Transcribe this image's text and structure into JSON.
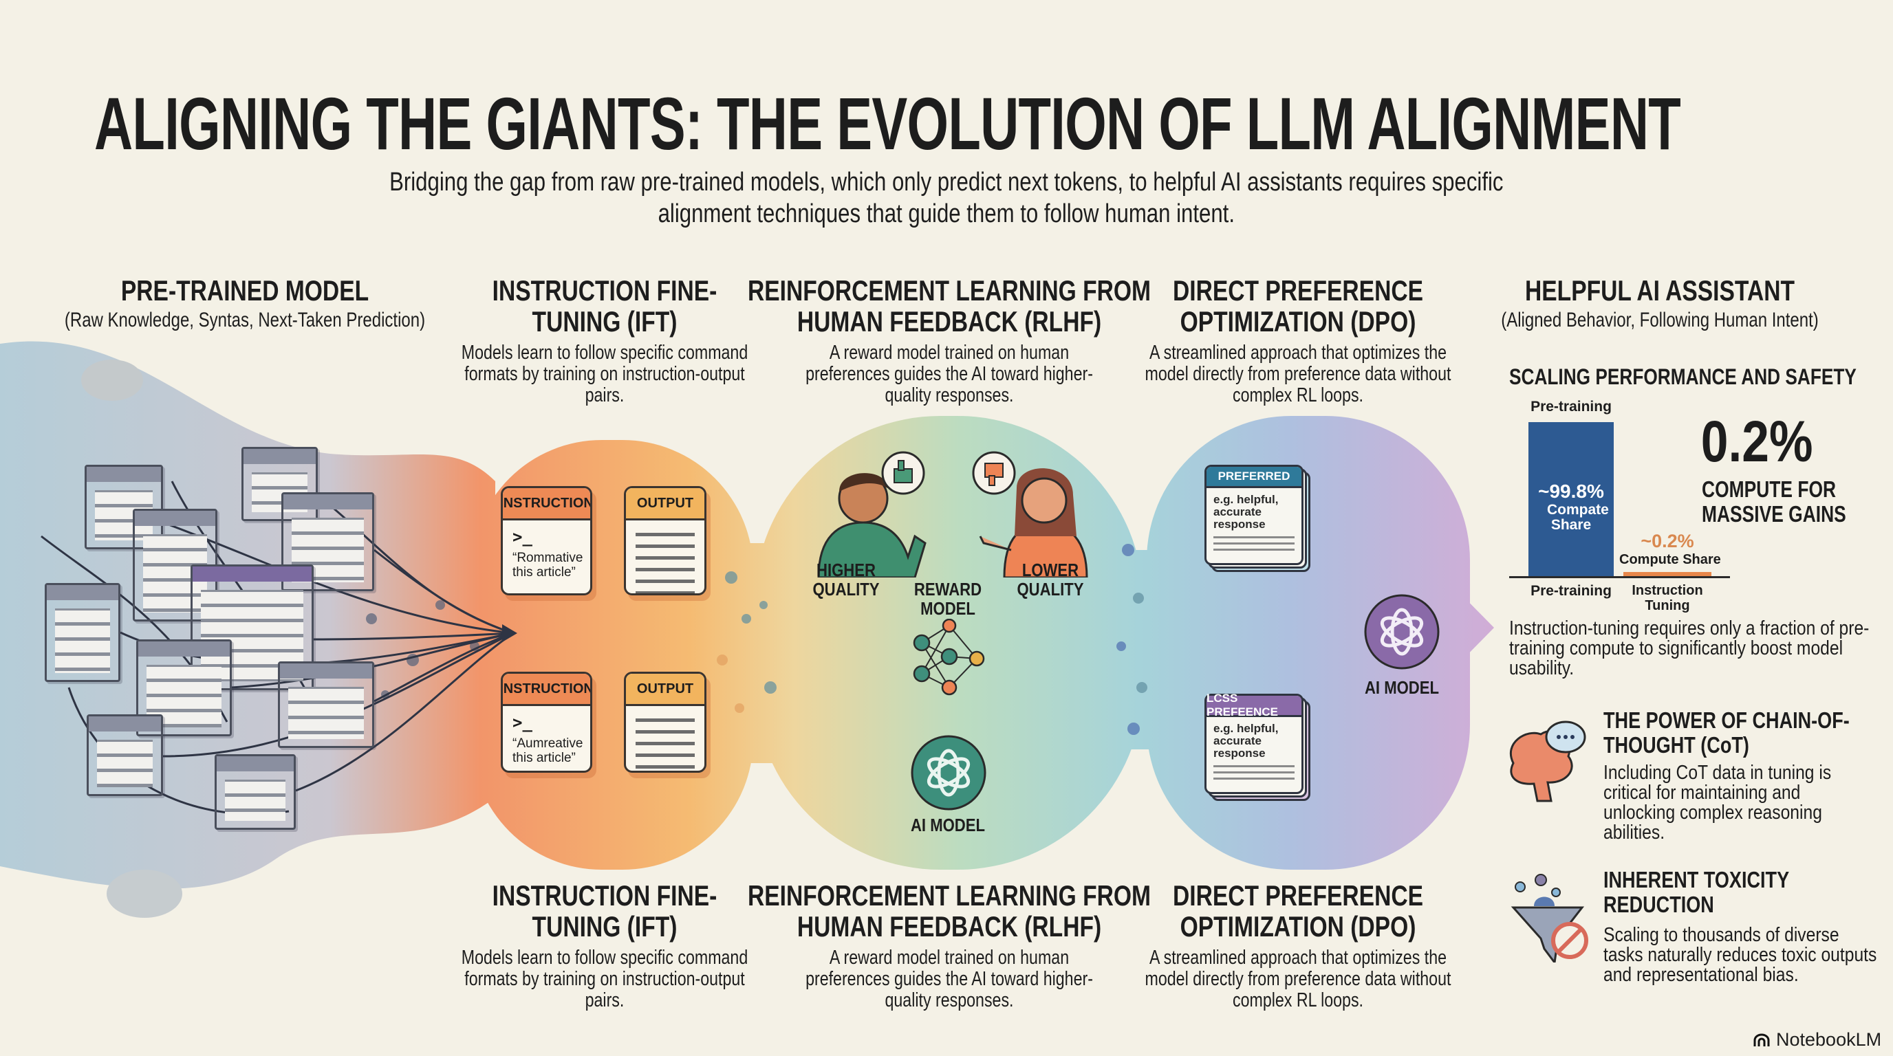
{
  "title": "ALIGNING THE GIANTS: THE EVOLUTION OF LLM ALIGNMENT",
  "subtitle": "Bridging the gap from raw pre-trained models, which only predict next tokens, to helpful AI assistants requires specific alignment techniques that guide them to follow human intent.",
  "stages": [
    {
      "title": "PRE-TRAINED MODEL",
      "subtitle": "(Raw Knowledge, Syntas, Next-Taken Prediction)"
    },
    {
      "title": "INSTRUCTION FINE-TUNING (IFT)",
      "desc": "Models learn to follow specific command formats by training on instruction-output pairs."
    },
    {
      "title": "REINFORCEMENT LEARNING FROM HUMAN FEEDBACK (RLHF)",
      "desc": "A reward model trained on human preferences guides the AI toward higher-quality responses."
    },
    {
      "title": "DIRECT PREFERENCE OPTIMIZATION (DPO)",
      "desc": "A streamlined approach that optimizes the model directly from preference data without complex RL loops."
    },
    {
      "title": "HELPFUL AI ASSISTANT",
      "subtitle": "(Aligned Behavior, Following Human Intent)"
    }
  ],
  "bottom_stages": [
    {
      "title": "INSTRUCTION FINE-TUNING (IFT)",
      "desc": "Models learn to follow specific command formats by training on instruction-output pairs."
    },
    {
      "title": "REINFORCEMENT LEARNING FROM HUMAN FEEDBACK (RLHF)",
      "desc": "A reward model trained on human preferences guides the AI toward higher-quality responses."
    },
    {
      "title": "DIRECT PREFERENCE OPTIMIZATION (DPO)",
      "desc": "A streamlined approach that optimizes the model directly from preference data without complex RL loops."
    }
  ],
  "ift": {
    "pairs": [
      {
        "instruction_label": "INSTRUCTION",
        "prompt": ">_",
        "text": "“Rommative this article”",
        "output_label": "OUTPUT"
      },
      {
        "instruction_label": "INSTRUCTION",
        "prompt": ">_",
        "text": "“Aumreative this article”",
        "output_label": "OUTPUT"
      }
    ]
  },
  "rlhf": {
    "higher": "HIGHER QUALITY",
    "lower": "LOWER QUALITY",
    "reward_model": "REWARD MODEL",
    "ai_model": "AI MODEL"
  },
  "dpo": {
    "preferred": {
      "label": "PREFERRED",
      "text": "e.g. helpful, accurate response"
    },
    "less": {
      "label": "LCSS PREFEENCE",
      "text": "e.g. helpful, accurate response"
    },
    "ai_model": "AI MODEL"
  },
  "right_panel": {
    "scaling_title": "SCALING PERFORMANCE AND SAFETY",
    "bar_top_label": "Pre-training",
    "big_stat": "0.2%",
    "big_stat_caption": "COMPUTE FOR MASSIVE GAINS",
    "bar1_value_label": "~99.8%",
    "bar1_value_caption": "Compate Share",
    "bar2_value_label": "~0.2%",
    "bar2_value_caption": "Compute Share",
    "scaling_desc": "Instruction-tuning requires only a fraction of pre-training compute to significantly boost model usability.",
    "cot_title": "THE POWER OF CHAIN-OF-THOUGHT (CoT)",
    "cot_desc": "Including CoT data in tuning is critical for maintaining and unlocking complex reasoning abilities.",
    "tox_title": "INHERENT TOXICITY REDUCTION",
    "tox_desc": "Scaling to thousands of diverse tasks naturally reduces toxic outputs and representational bias."
  },
  "chart_data": {
    "type": "bar",
    "categories": [
      "Pre-training",
      "Instruction Tuning"
    ],
    "values": [
      99.8,
      0.2
    ],
    "ylim": [
      0,
      100
    ],
    "colors": [
      "#2d5a92",
      "#e8874a"
    ],
    "grid": false
  },
  "brand": "NotebookLM",
  "colors": {
    "background": "#f4f1e6",
    "orange": "#ee8a55",
    "teal": "#3d8f7c",
    "blue_bar": "#2d5a92",
    "purple": "#8a6aa8"
  },
  "icons": [
    "document-icon",
    "arrow-icon",
    "person-icon",
    "thumbs-up-icon",
    "thumbs-down-icon",
    "neural-network-icon",
    "ai-model-logo-icon",
    "brain-icon",
    "speech-bubble-icon",
    "funnel-icon",
    "prohibited-icon",
    "notebooklm-logo-icon"
  ]
}
